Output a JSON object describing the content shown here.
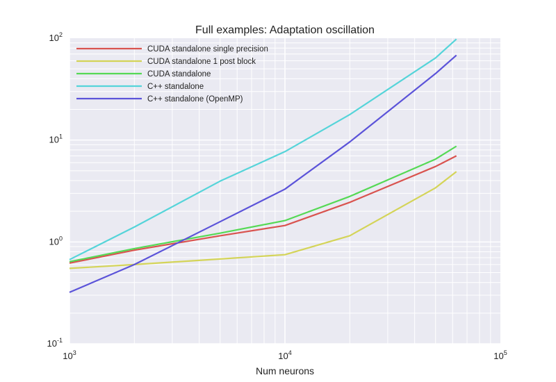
{
  "chart_data": {
    "type": "line",
    "title": "Full examples: Adaptation oscillation",
    "xlabel": "Num neurons",
    "ylabel": "",
    "xscale": "log",
    "yscale": "log",
    "xlim": [
      1000,
      100000
    ],
    "ylim": [
      0.1,
      100
    ],
    "grid": true,
    "legend_position": "top-left",
    "x_ticks": [
      {
        "base": "10",
        "exp": "3"
      },
      {
        "base": "10",
        "exp": "4"
      },
      {
        "base": "10",
        "exp": "5"
      }
    ],
    "y_ticks": [
      {
        "base": "10",
        "exp": "-1"
      },
      {
        "base": "10",
        "exp": "0"
      },
      {
        "base": "10",
        "exp": "1"
      },
      {
        "base": "10",
        "exp": "2"
      }
    ],
    "series": [
      {
        "name": "CUDA standalone single precision",
        "color": "#d9534f",
        "x": [
          1000,
          2000,
          5000,
          10000,
          20000,
          50000,
          62500
        ],
        "y": [
          0.62,
          0.83,
          1.15,
          1.45,
          2.45,
          5.5,
          7.0
        ]
      },
      {
        "name": "CUDA standalone 1 post block",
        "color": "#d4d458",
        "x": [
          1000,
          2000,
          5000,
          10000,
          20000,
          50000,
          62500
        ],
        "y": [
          0.55,
          0.6,
          0.68,
          0.75,
          1.15,
          3.4,
          4.9
        ]
      },
      {
        "name": "CUDA standalone",
        "color": "#55d955",
        "x": [
          1000,
          2000,
          5000,
          10000,
          20000,
          50000,
          62500
        ],
        "y": [
          0.64,
          0.86,
          1.22,
          1.62,
          2.8,
          6.5,
          8.7
        ]
      },
      {
        "name": "C++ standalone",
        "color": "#55d4d9",
        "x": [
          1000,
          2000,
          5000,
          10000,
          20000,
          50000,
          62500
        ],
        "y": [
          0.67,
          1.4,
          3.95,
          7.7,
          17.8,
          64,
          98
        ]
      },
      {
        "name": "C++ standalone (OpenMP)",
        "color": "#5b53d9",
        "x": [
          1000,
          2000,
          5000,
          10000,
          20000,
          50000,
          62500
        ],
        "y": [
          0.32,
          0.6,
          1.58,
          3.3,
          9.6,
          45,
          68
        ]
      }
    ]
  }
}
